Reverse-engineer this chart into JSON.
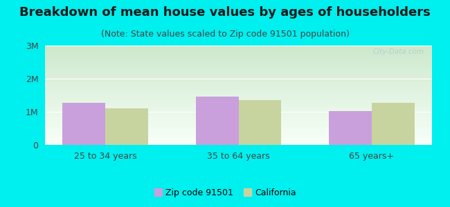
{
  "title": "Breakdown of mean house values by ages of householders",
  "subtitle": "(Note: State values scaled to Zip code 91501 population)",
  "categories": [
    "25 to 34 years",
    "35 to 64 years",
    "65 years+"
  ],
  "zip_values": [
    1280000,
    1450000,
    1020000
  ],
  "ca_values": [
    1100000,
    1350000,
    1280000
  ],
  "zip_color": "#c9a0dc",
  "ca_color": "#c8d4a0",
  "background_color": "#00EFEF",
  "grad_top": "#cce8cc",
  "grad_bottom": "#f8fff8",
  "ylim": [
    0,
    3000000
  ],
  "yticks": [
    0,
    1000000,
    2000000,
    3000000
  ],
  "ytick_labels": [
    "0",
    "1M",
    "2M",
    "3M"
  ],
  "bar_width": 0.32,
  "legend_label_zip": "Zip code 91501",
  "legend_label_ca": "California",
  "title_fontsize": 13,
  "subtitle_fontsize": 9,
  "tick_fontsize": 9,
  "legend_fontsize": 9,
  "watermark": "City-Data.com"
}
